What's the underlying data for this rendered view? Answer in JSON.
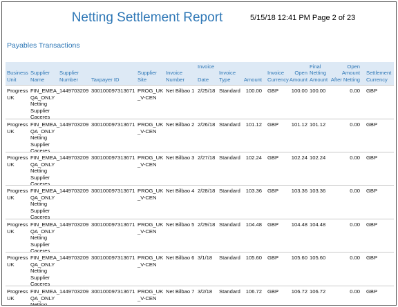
{
  "header": {
    "title": "Netting Settlement Report",
    "timestamp": "5/15/18 12:41 PM Page 2 of 23"
  },
  "section_title": "Payables Transactions",
  "table": {
    "columns": [
      "Business\nUnit",
      "Supplier\nName",
      "Supplier\nNumber",
      "Taxpayer ID",
      "Supplier\nSite",
      "Invoice\nNumber",
      "Invoice\n\nDate",
      "Invoice\nType",
      "Amount",
      "Invoice\nCurrency",
      "Open\nAmount",
      "Final\nNetting\nAmount",
      "Open Amount\nAfter Netting",
      "Settlement\nCurrency"
    ],
    "rows": [
      [
        "Progress\nUK",
        "FIN_EMEA_\nQA_ONLY\nNetting\nSupplier\nCaceres",
        "1449703209",
        "300100097313671",
        "PROG_UK\n_V-CEN",
        "Net Bilbao 1",
        "2/25/18",
        "Standard",
        "100.00",
        "GBP",
        "100.00",
        "100.00",
        "0.00",
        "GBP"
      ],
      [
        "Progress\nUK",
        "FIN_EMEA_\nQA_ONLY\nNetting\nSupplier\nCaceres",
        "1449703209",
        "300100097313671",
        "PROG_UK\n_V-CEN",
        "Net Bilbao 2",
        "2/26/18",
        "Standard",
        "101.12",
        "GBP",
        "101.12",
        "101.12",
        "0.00",
        "GBP"
      ],
      [
        "Progress\nUK",
        "FIN_EMEA_\nQA_ONLY\nNetting\nSupplier\nCaceres",
        "1449703209",
        "300100097313671",
        "PROG_UK\n_V-CEN",
        "Net Bilbao 3",
        "2/27/18",
        "Standard",
        "102.24",
        "GBP",
        "102.24",
        "102.24",
        "0.00",
        "GBP"
      ],
      [
        "Progress\nUK",
        "FIN_EMEA_\nQA_ONLY\nNetting\nSupplier\nCaceres",
        "1449703209",
        "300100097313671",
        "PROG_UK\n_V-CEN",
        "Net Bilbao 4",
        "2/28/18",
        "Standard",
        "103.36",
        "GBP",
        "103.36",
        "103.36",
        "0.00",
        "GBP"
      ],
      [
        "Progress\nUK",
        "FIN_EMEA_\nQA_ONLY\nNetting\nSupplier\nCaceres",
        "1449703209",
        "300100097313671",
        "PROG_UK\n_V-CEN",
        "Net Bilbao 5",
        "2/29/18",
        "Standard",
        "104.48",
        "GBP",
        "104.48",
        "104.48",
        "0.00",
        "GBP"
      ],
      [
        "Progress\nUK",
        "FIN_EMEA_\nQA_ONLY\nNetting\nSupplier\nCaceres",
        "1449703209",
        "300100097313671",
        "PROG_UK\n_V-CEN",
        "Net Bilbao 6",
        "3/1/18",
        "Standard",
        "105.60",
        "GBP",
        "105.60",
        "105.60",
        "0.00",
        "GBP"
      ],
      [
        "Progress\nUK",
        "FIN_EMEA_\nQA_ONLY\nNetting",
        "1449703209",
        "300100097313671",
        "PROG_UK\n_V-CEN",
        "Net Bilbao 7",
        "3/2/18",
        "Standard",
        "106.72",
        "GBP",
        "106.72",
        "106.72",
        "0.00",
        "GBP"
      ]
    ]
  }
}
